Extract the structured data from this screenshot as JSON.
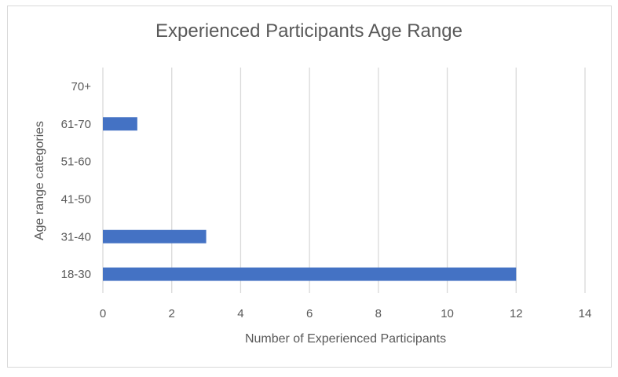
{
  "chart_data": {
    "type": "bar",
    "orientation": "horizontal",
    "title": "Experienced Participants Age Range",
    "xlabel": "Number of Experienced Participants",
    "ylabel": "Age range  categories",
    "categories": [
      "18-30",
      "31-40",
      "41-50",
      "51-60",
      "61-70",
      "70+"
    ],
    "values": [
      12,
      3,
      0,
      0,
      1,
      0
    ],
    "xlim": [
      0,
      14
    ],
    "xticks": [
      0,
      2,
      4,
      6,
      8,
      10,
      12,
      14
    ],
    "grid": true,
    "legend": "none",
    "bar_color": "#4472C4",
    "grid_color": "#d9d9d9"
  }
}
